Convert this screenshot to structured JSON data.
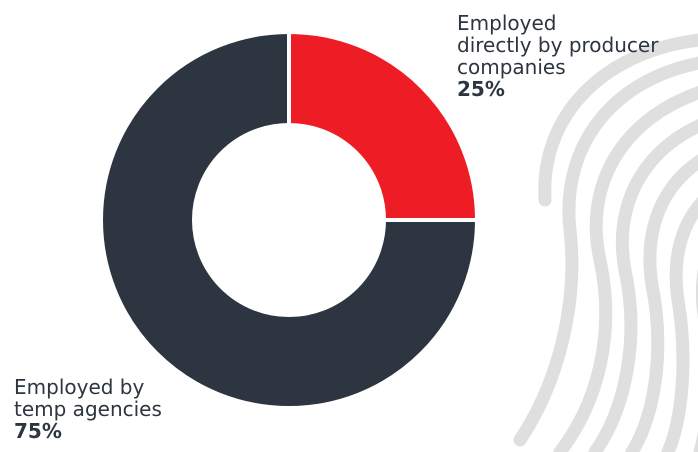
{
  "colors": {
    "background": "#ffffff",
    "text": "#2d3540",
    "decor": "#dcdcdc"
  },
  "decoration": {
    "icon": "fingerprint-icon"
  },
  "chart_data": {
    "type": "pie",
    "variant": "donut",
    "title": "",
    "legend": "none",
    "categories": [
      "Employed\ndirectly by producer\ncompanies",
      "Employed by\ntemp agencies"
    ],
    "values": [
      25,
      75
    ],
    "labels": [
      "25%",
      "75%"
    ],
    "colors": [
      "#ee1c25",
      "#2d3540"
    ]
  }
}
